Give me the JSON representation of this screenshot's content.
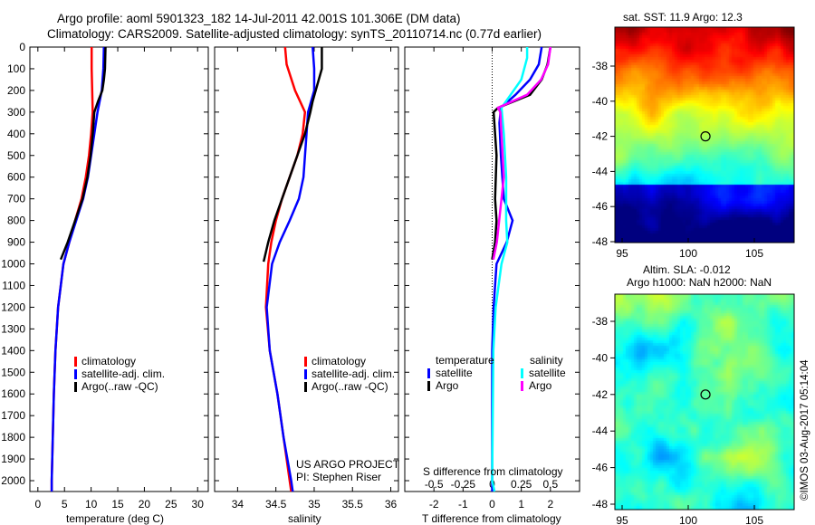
{
  "title_line1": "Argo profile: aoml 5901323_182 14-Jul-2011 42.001S 101.306E (DM data)",
  "title_line2": "Climatology: CARS2009. Satellite-adjusted climatology: synTS_20110714.nc (0.77d earlier)",
  "colors": {
    "climatology": "#ff0000",
    "satellite": "#0000ff",
    "argo": "#000000",
    "s_satellite": "#00ffff",
    "s_argo": "#ff00ff"
  },
  "chart_data": [
    {
      "type": "line",
      "name": "temperature",
      "xlabel": "temperature (deg C)",
      "ylabel": "depth",
      "xlim": [
        -1.5,
        32
      ],
      "ylim": [
        2050,
        0
      ],
      "xticks": [
        0,
        5,
        10,
        15,
        20,
        25,
        30
      ],
      "yticks": [
        0,
        100,
        200,
        300,
        400,
        500,
        600,
        700,
        800,
        900,
        1000,
        1100,
        1200,
        1300,
        1400,
        1500,
        1600,
        1700,
        1800,
        1900,
        2000
      ],
      "legend": [
        "climatology",
        "satellite-adj. clim.",
        "Argo(..raw -QC)"
      ],
      "series": [
        {
          "name": "climatology",
          "depth": [
            0,
            100,
            200,
            300,
            400,
            500,
            600,
            700,
            800,
            900,
            1000,
            1200,
            1400,
            1600,
            1800,
            2000,
            2050
          ],
          "values": [
            10.1,
            10.1,
            10.2,
            10.3,
            10.0,
            9.6,
            9.0,
            8.2,
            7.0,
            5.9,
            4.8,
            3.8,
            3.3,
            3.0,
            2.8,
            2.6,
            2.6
          ]
        },
        {
          "name": "satellite-adj. clim.",
          "depth": [
            0,
            100,
            200,
            300,
            400,
            500,
            600,
            700,
            800,
            900,
            1000,
            1200,
            1400,
            1600,
            1800,
            2000,
            2050
          ],
          "values": [
            12.4,
            12.3,
            12.0,
            11.2,
            10.6,
            10.0,
            9.4,
            8.5,
            7.2,
            5.9,
            4.8,
            3.8,
            3.3,
            3.0,
            2.8,
            2.6,
            2.6
          ]
        },
        {
          "name": "Argo",
          "depth": [
            0,
            100,
            150,
            200,
            250,
            300,
            400,
            500,
            600,
            700,
            800,
            900,
            980
          ],
          "values": [
            12.7,
            12.6,
            12.4,
            12.1,
            11.3,
            10.6,
            10.3,
            9.9,
            9.3,
            8.4,
            7.0,
            5.6,
            4.3
          ]
        }
      ]
    },
    {
      "type": "line",
      "name": "salinity",
      "xlabel": "salinity",
      "xlim": [
        33.7,
        36.1
      ],
      "ylim": [
        2050,
        0
      ],
      "xticks": [
        34,
        34.5,
        35,
        35.5,
        36
      ],
      "legend": [
        "climatology",
        "satellite-adj. clim.",
        "Argo(..raw -QC)"
      ],
      "annotation": [
        "US ARGO PROJECT",
        "PI: Stephen Riser"
      ],
      "series": [
        {
          "name": "climatology",
          "depth": [
            0,
            80,
            200,
            300,
            400,
            500,
            600,
            700,
            800,
            900,
            1000,
            1200,
            1400,
            1600,
            1800,
            2000,
            2050
          ],
          "values": [
            34.62,
            34.64,
            34.75,
            34.88,
            34.85,
            34.78,
            34.68,
            34.58,
            34.5,
            34.44,
            34.4,
            34.37,
            34.42,
            34.52,
            34.6,
            34.68,
            34.7
          ]
        },
        {
          "name": "satellite-adj. clim.",
          "depth": [
            0,
            100,
            200,
            300,
            400,
            500,
            600,
            700,
            800,
            900,
            1000,
            1200,
            1400,
            1600,
            1800,
            2000,
            2050
          ],
          "values": [
            34.98,
            35.0,
            35.0,
            34.92,
            34.9,
            34.88,
            34.86,
            34.8,
            34.68,
            34.55,
            34.45,
            34.38,
            34.42,
            34.52,
            34.6,
            34.7,
            34.72
          ]
        },
        {
          "name": "Argo",
          "depth": [
            0,
            100,
            150,
            200,
            250,
            300,
            400,
            500,
            600,
            700,
            800,
            900,
            990
          ],
          "values": [
            35.1,
            35.1,
            35.06,
            35.02,
            34.98,
            34.95,
            34.88,
            34.78,
            34.68,
            34.58,
            34.48,
            34.4,
            34.34
          ]
        }
      ]
    },
    {
      "type": "line",
      "name": "difference",
      "xlabel": "T difference from climatology",
      "x2label": "S difference from climatology",
      "xlim": [
        -3,
        3
      ],
      "x2lim": [
        -0.75,
        0.75
      ],
      "ylim": [
        2050,
        0
      ],
      "xticks": [
        -2,
        -1,
        0,
        1,
        2
      ],
      "x2ticks": [
        -0.5,
        -0.25,
        0,
        0.25,
        0.5
      ],
      "legend": {
        "temperature": [
          "satellite",
          "Argo"
        ],
        "salinity": [
          "satellite",
          "Argo"
        ]
      },
      "series": [
        {
          "name": "T satellite",
          "axis": "T",
          "depth": [
            0,
            80,
            150,
            220,
            280,
            350,
            500,
            700,
            800,
            900,
            1000,
            1200,
            1400,
            2000,
            2050
          ],
          "values": [
            1.7,
            1.6,
            1.3,
            0.8,
            0.3,
            0.25,
            0.3,
            0.4,
            0.7,
            0.5,
            0.15,
            0.05,
            0,
            0,
            0
          ]
        },
        {
          "name": "T Argo",
          "axis": "T",
          "depth": [
            0,
            80,
            150,
            220,
            280,
            300,
            400,
            500,
            700,
            800,
            900,
            980
          ],
          "values": [
            2.0,
            1.9,
            1.7,
            1.3,
            0.2,
            0.05,
            0.1,
            0.15,
            0.1,
            0.15,
            0.1,
            0.0
          ]
        },
        {
          "name": "S satellite",
          "axis": "S",
          "depth": [
            0,
            50,
            150,
            280,
            400,
            600,
            800,
            900,
            1000,
            1200,
            1400,
            2000,
            2050
          ],
          "values": [
            0.3,
            0.3,
            0.25,
            0.08,
            0.1,
            0.12,
            0.12,
            0.13,
            0.08,
            0.03,
            0.01,
            0.0,
            0.02
          ]
        },
        {
          "name": "S Argo",
          "axis": "S",
          "depth": [
            0,
            80,
            150,
            220,
            280,
            300,
            400,
            600,
            800,
            900,
            980
          ],
          "values": [
            0.5,
            0.48,
            0.42,
            0.3,
            0.05,
            0.07,
            0.08,
            0.1,
            0.06,
            0.04,
            0.01
          ]
        }
      ]
    },
    {
      "type": "heatmap",
      "name": "SST map",
      "title": "sat. SST: 11.9 Argo: 12.3",
      "xticks": [
        95,
        100,
        105
      ],
      "yticks": [
        -38,
        -40,
        -42,
        -44,
        -46,
        -48
      ],
      "marker": [
        101.306,
        -42.001
      ]
    },
    {
      "type": "heatmap",
      "name": "SLA map",
      "title": [
        "Altim. SLA: -0.012",
        "Argo h1000: NaN h2000: NaN"
      ],
      "xticks": [
        95,
        100,
        105
      ],
      "yticks": [
        -38,
        -40,
        -42,
        -44,
        -46,
        -48
      ],
      "marker": [
        101.306,
        -42.001
      ]
    }
  ],
  "credit": "©IMOS 03-Aug-2017 05:14:04"
}
